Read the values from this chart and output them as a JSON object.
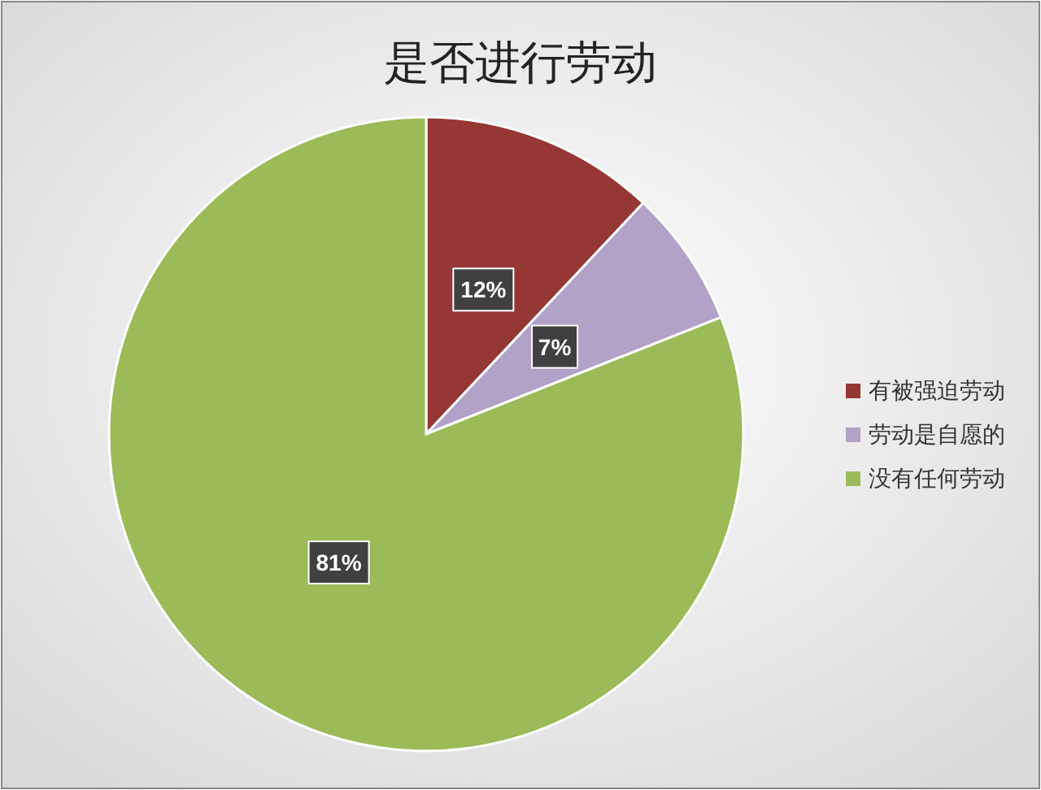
{
  "chart_data": {
    "type": "pie",
    "title": "是否进行劳动",
    "categories": [
      "有被强迫劳动",
      "劳动是自愿的",
      "没有任何劳动"
    ],
    "values": [
      12,
      7,
      81
    ],
    "value_labels": [
      "12%",
      "7%",
      "81%"
    ],
    "colors": [
      "#953735",
      "#b3a2c7",
      "#9bbb59"
    ],
    "legend": "right"
  }
}
